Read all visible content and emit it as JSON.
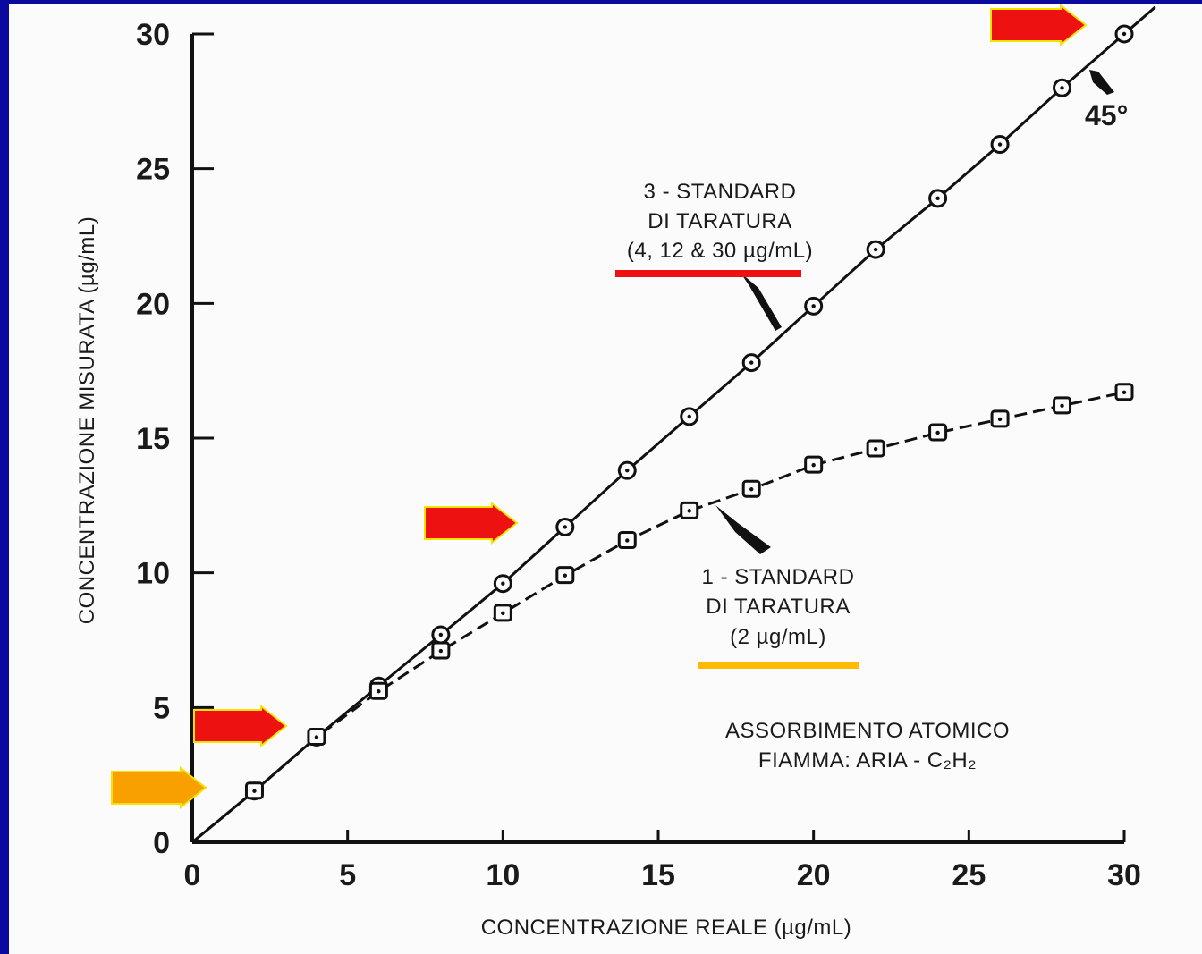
{
  "chart_data": {
    "type": "line",
    "xlabel": "CONCENTRAZIONE REALE  (µg/mL)",
    "ylabel": "CONCENTRAZIONE MISURATA  (µg/mL)",
    "xlim": [
      0,
      30
    ],
    "ylim": [
      0,
      30
    ],
    "xticks": [
      "0",
      "5",
      "10",
      "15",
      "20",
      "25",
      "30"
    ],
    "yticks": [
      "0",
      "5",
      "10",
      "15",
      "20",
      "25",
      "30"
    ],
    "grid": false,
    "series": [
      {
        "name": "3 - STANDARD DI TARATURA (4, 12 & 30 µg/mL)",
        "style": "solid",
        "marker": "circle",
        "x": [
          2,
          4,
          6,
          8,
          10,
          12,
          14,
          16,
          18,
          20,
          22,
          24,
          26,
          28,
          30
        ],
        "y": [
          1.9,
          3.9,
          5.8,
          7.7,
          9.6,
          11.7,
          13.8,
          15.8,
          17.8,
          19.9,
          22.0,
          23.9,
          25.9,
          28.0,
          30.0
        ]
      },
      {
        "name": "1 - STANDARD DI TARATURA (2 µg/mL)",
        "style": "dashed",
        "marker": "square",
        "x": [
          2,
          4,
          6,
          8,
          10,
          12,
          14,
          16,
          18,
          20,
          22,
          24,
          26,
          28,
          30
        ],
        "y": [
          1.9,
          3.9,
          5.6,
          7.1,
          8.5,
          9.9,
          11.2,
          12.3,
          13.1,
          14.0,
          14.6,
          15.2,
          15.7,
          16.2,
          16.7
        ]
      }
    ],
    "annotations": {
      "angle_label": "45°",
      "curve3_lines": [
        "3 - STANDARD",
        "DI TARATURA",
        "(4, 12 & 30 µg/mL)"
      ],
      "curve1_lines": [
        "1 - STANDARD",
        "DI TARATURA",
        "(2 µg/mL)"
      ],
      "method_lines": [
        "ASSORBIMENTO ATOMICO",
        "FIAMMA: ARIA - C₂H₂"
      ]
    },
    "highlights": {
      "arrow_red": "#ee1111",
      "arrow_orange": "#f7a000",
      "underline_red": "#ee1111",
      "underline_yellow": "#ffbb00",
      "red_arrow_targets_y": [
        4,
        12,
        30
      ],
      "orange_arrow_target_y": 2
    }
  }
}
